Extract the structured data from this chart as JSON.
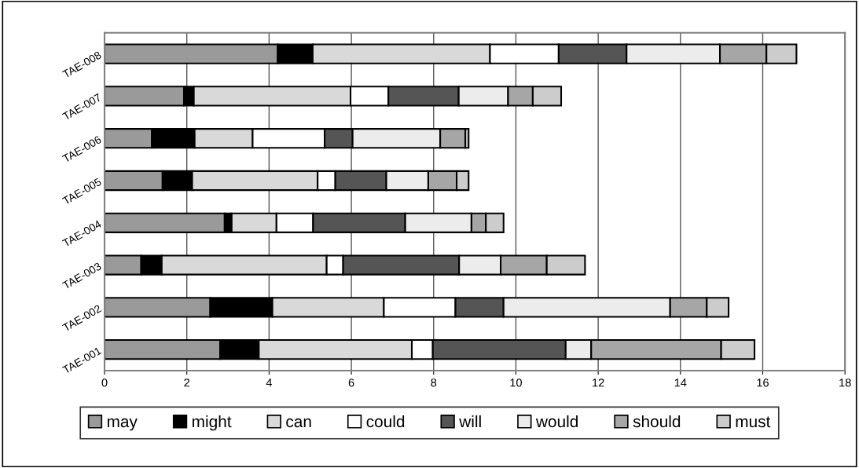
{
  "chart_data": {
    "type": "bar",
    "orientation": "horizontal",
    "stacked": true,
    "categories": [
      "TAE-008",
      "TAE-007",
      "TAE-006",
      "TAE-005",
      "TAE-004",
      "TAE-003",
      "TAE-002",
      "TAE-001"
    ],
    "series": [
      {
        "name": "may",
        "color": "#9a9a9a",
        "values": [
          4.21,
          1.93,
          1.15,
          1.41,
          2.92,
          0.89,
          2.57,
          2.81
        ]
      },
      {
        "name": "might",
        "color": "#000000",
        "values": [
          0.85,
          0.24,
          1.04,
          0.72,
          0.17,
          0.5,
          1.51,
          0.94
        ]
      },
      {
        "name": "can",
        "color": "#d9d9d9",
        "values": [
          4.31,
          3.81,
          1.41,
          3.05,
          1.09,
          4.01,
          2.71,
          3.72
        ]
      },
      {
        "name": "could",
        "color": "#ffffff",
        "values": [
          1.67,
          0.92,
          1.75,
          0.43,
          0.89,
          0.4,
          1.74,
          0.51
        ]
      },
      {
        "name": "will",
        "color": "#555555",
        "values": [
          1.65,
          1.71,
          0.68,
          1.24,
          2.24,
          2.82,
          1.17,
          3.23
        ]
      },
      {
        "name": "would",
        "color": "#ececec",
        "values": [
          2.27,
          1.2,
          2.13,
          1.02,
          1.61,
          1.01,
          4.05,
          0.62
        ]
      },
      {
        "name": "should",
        "color": "#a6a6a6",
        "values": [
          1.13,
          0.6,
          0.61,
          0.69,
          0.35,
          1.12,
          0.89,
          3.16
        ]
      },
      {
        "name": "must",
        "color": "#cccccc",
        "values": [
          0.73,
          0.69,
          0.08,
          0.29,
          0.43,
          0.93,
          0.53,
          0.81
        ]
      }
    ],
    "xlim": [
      0,
      18
    ],
    "xticks": [
      0,
      2,
      4,
      6,
      8,
      10,
      12,
      14,
      16,
      18
    ],
    "grid": "x",
    "legend": "bottom"
  }
}
